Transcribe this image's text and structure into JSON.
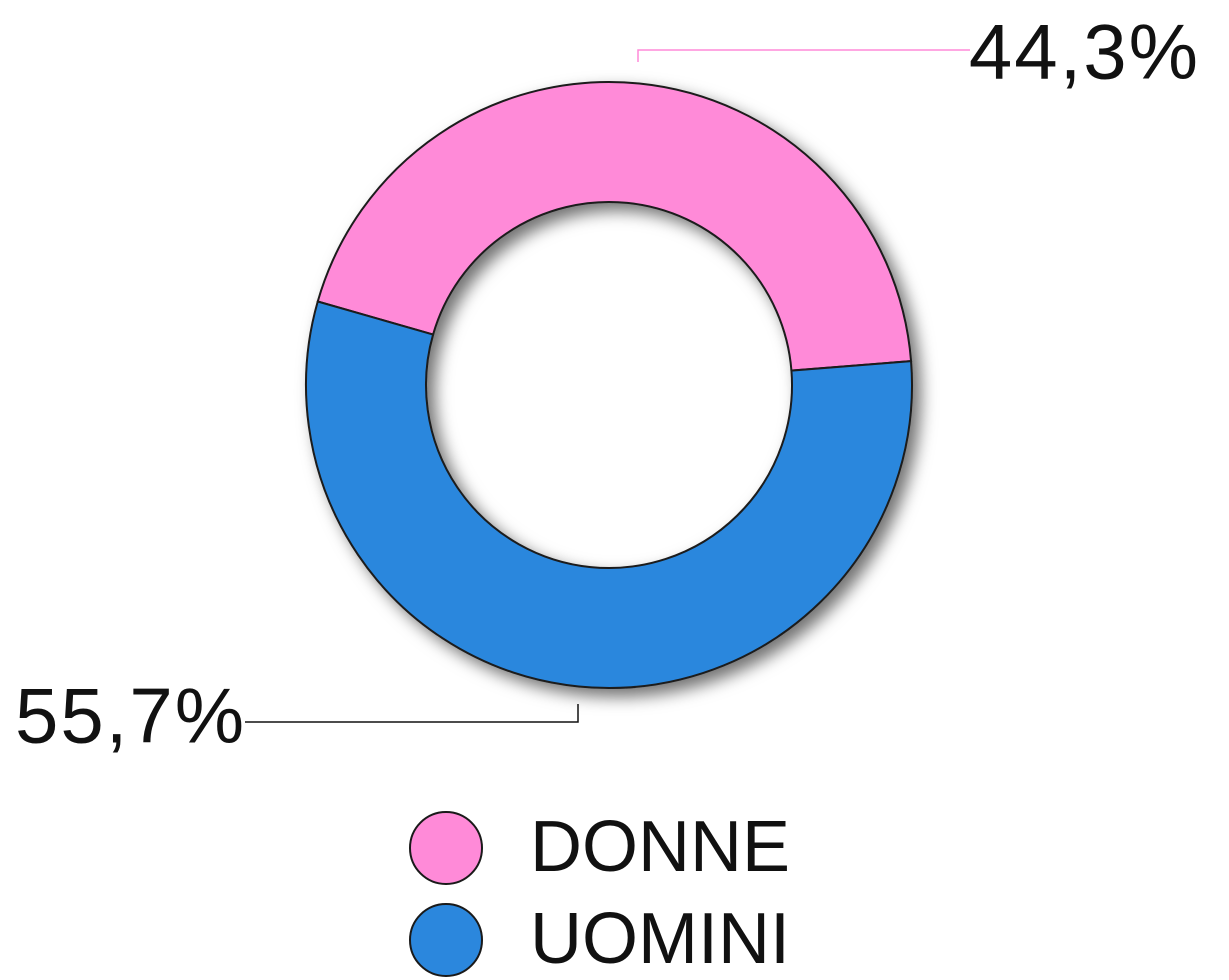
{
  "chart_data": {
    "type": "donut",
    "categories": [
      "DONNE",
      "UOMINI"
    ],
    "values": [
      44.3,
      55.7
    ],
    "value_labels": [
      "44,3%",
      "55,7%"
    ],
    "colors": [
      "#ff8ad8",
      "#2b87dd"
    ],
    "legend": "bottom"
  }
}
